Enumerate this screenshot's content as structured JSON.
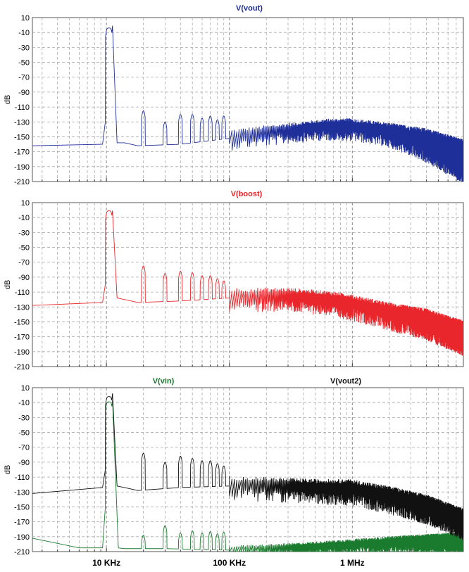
{
  "chart_data": [
    {
      "type": "line",
      "title": "V(vout)",
      "ylabel": "dB",
      "xlabel": "",
      "xscale": "log",
      "xlim": [
        2500,
        8000000
      ],
      "ylim": [
        -210,
        10
      ],
      "yticks": [
        10,
        -10,
        -30,
        -50,
        -70,
        -90,
        -110,
        -130,
        -150,
        -170,
        -190,
        -210
      ],
      "grid": true,
      "series": [
        {
          "name": "V(vout)",
          "color": "#1f2f9a",
          "floor": [
            [
              2500,
              -162
            ],
            [
              9300,
              -160
            ],
            [
              9800,
              -130
            ],
            [
              11200,
              0
            ],
            [
              12200,
              -158
            ],
            [
              14000,
              -158
            ],
            [
              18000,
              -162
            ],
            [
              40000,
              -160
            ],
            [
              100000,
              -152
            ],
            [
              300000,
              -143
            ],
            [
              600000,
              -138
            ],
            [
              1000000,
              -138
            ],
            [
              2000000,
              -145
            ],
            [
              4000000,
              -158
            ],
            [
              8000000,
              -178
            ]
          ],
          "peaks": [
            [
              10000,
              0
            ],
            [
              11100,
              0
            ],
            [
              20000,
              -115
            ],
            [
              30000,
              -130
            ],
            [
              40000,
              -120
            ],
            [
              50000,
              -120
            ],
            [
              60000,
              -125
            ],
            [
              70000,
              -122
            ],
            [
              80000,
              -127
            ],
            [
              90000,
              -122
            ]
          ],
          "noise_amp": [
            [
              100000,
              12
            ],
            [
              500000,
              12
            ],
            [
              2000000,
              14
            ],
            [
              8000000,
              25
            ]
          ]
        }
      ]
    },
    {
      "type": "line",
      "title": "V(boost)",
      "ylabel": "dB",
      "xlabel": "",
      "xscale": "log",
      "xlim": [
        2500,
        8000000
      ],
      "ylim": [
        -210,
        10
      ],
      "yticks": [
        10,
        -10,
        -30,
        -50,
        -70,
        -90,
        -110,
        -130,
        -150,
        -170,
        -190,
        -210
      ],
      "grid": true,
      "series": [
        {
          "name": "V(boost)",
          "color": "#e8262b",
          "floor": [
            [
              2500,
              -128
            ],
            [
              9300,
              -124
            ],
            [
              9800,
              -100
            ],
            [
              11200,
              0
            ],
            [
              12200,
              -118
            ],
            [
              14000,
              -120
            ],
            [
              18000,
              -124
            ],
            [
              40000,
              -122
            ],
            [
              100000,
              -118
            ],
            [
              300000,
              -118
            ],
            [
              600000,
              -122
            ],
            [
              1000000,
              -128
            ],
            [
              2000000,
              -140
            ],
            [
              4000000,
              -150
            ],
            [
              8000000,
              -168
            ]
          ],
          "peaks": [
            [
              10000,
              3
            ],
            [
              11100,
              3
            ],
            [
              20000,
              -75
            ],
            [
              30000,
              -85
            ],
            [
              40000,
              -82
            ],
            [
              50000,
              -84
            ],
            [
              60000,
              -88
            ],
            [
              70000,
              -88
            ],
            [
              80000,
              -92
            ],
            [
              90000,
              -95
            ]
          ],
          "noise_amp": [
            [
              100000,
              14
            ],
            [
              500000,
              14
            ],
            [
              2000000,
              16
            ],
            [
              8000000,
              20
            ]
          ]
        }
      ]
    },
    {
      "type": "line",
      "title": "V(vin)",
      "ylabel": "dB",
      "xlabel": "",
      "xscale": "log",
      "xlim": [
        2500,
        8000000
      ],
      "ylim": [
        -210,
        10
      ],
      "yticks": [
        10,
        -10,
        -30,
        -50,
        -70,
        -90,
        -110,
        -130,
        -150,
        -170,
        -190,
        -210
      ],
      "xticks": [
        {
          "value": 10000,
          "label": "10 KHz"
        },
        {
          "value": 100000,
          "label": "100 KHz"
        },
        {
          "value": 1000000,
          "label": "1 MHz"
        }
      ],
      "grid": true,
      "series": [
        {
          "name": "V(vin)",
          "color": "#1a7a2e",
          "floor": [
            [
              2500,
              -192
            ],
            [
              6000,
              -205
            ],
            [
              9300,
              -205
            ],
            [
              9800,
              -150
            ],
            [
              11200,
              -5
            ],
            [
              12500,
              -205
            ],
            [
              14000,
              -206
            ],
            [
              30000,
              -206
            ],
            [
              100000,
              -208
            ],
            [
              300000,
              -206
            ],
            [
              1000000,
              -202
            ],
            [
              3000000,
              -198
            ],
            [
              8000000,
              -196
            ]
          ],
          "peaks": [
            [
              10000,
              -5
            ],
            [
              11100,
              -5
            ],
            [
              20000,
              -188
            ],
            [
              30000,
              -175
            ],
            [
              40000,
              -185
            ],
            [
              50000,
              -182
            ],
            [
              60000,
              -185
            ],
            [
              70000,
              -183
            ],
            [
              80000,
              -186
            ],
            [
              90000,
              -184
            ]
          ],
          "noise_amp": [
            [
              100000,
              6
            ],
            [
              500000,
              8
            ],
            [
              2000000,
              10
            ],
            [
              8000000,
              12
            ]
          ]
        },
        {
          "name": "V(vout2)",
          "color": "#111111",
          "floor": [
            [
              2500,
              -132
            ],
            [
              9300,
              -124
            ],
            [
              9800,
              -100
            ],
            [
              11200,
              3
            ],
            [
              12200,
              -122
            ],
            [
              14000,
              -124
            ],
            [
              18000,
              -128
            ],
            [
              40000,
              -124
            ],
            [
              100000,
              -122
            ],
            [
              300000,
              -125
            ],
            [
              600000,
              -127
            ],
            [
              1000000,
              -128
            ],
            [
              2000000,
              -138
            ],
            [
              4000000,
              -150
            ],
            [
              8000000,
              -170
            ]
          ],
          "peaks": [
            [
              10000,
              2
            ],
            [
              11100,
              2
            ],
            [
              20000,
              -78
            ],
            [
              30000,
              -90
            ],
            [
              40000,
              -82
            ],
            [
              50000,
              -85
            ],
            [
              60000,
              -88
            ],
            [
              70000,
              -88
            ],
            [
              80000,
              -92
            ],
            [
              90000,
              -95
            ]
          ],
          "noise_amp": [
            [
              100000,
              14
            ],
            [
              500000,
              14
            ],
            [
              2000000,
              16
            ],
            [
              8000000,
              18
            ]
          ]
        }
      ]
    }
  ]
}
